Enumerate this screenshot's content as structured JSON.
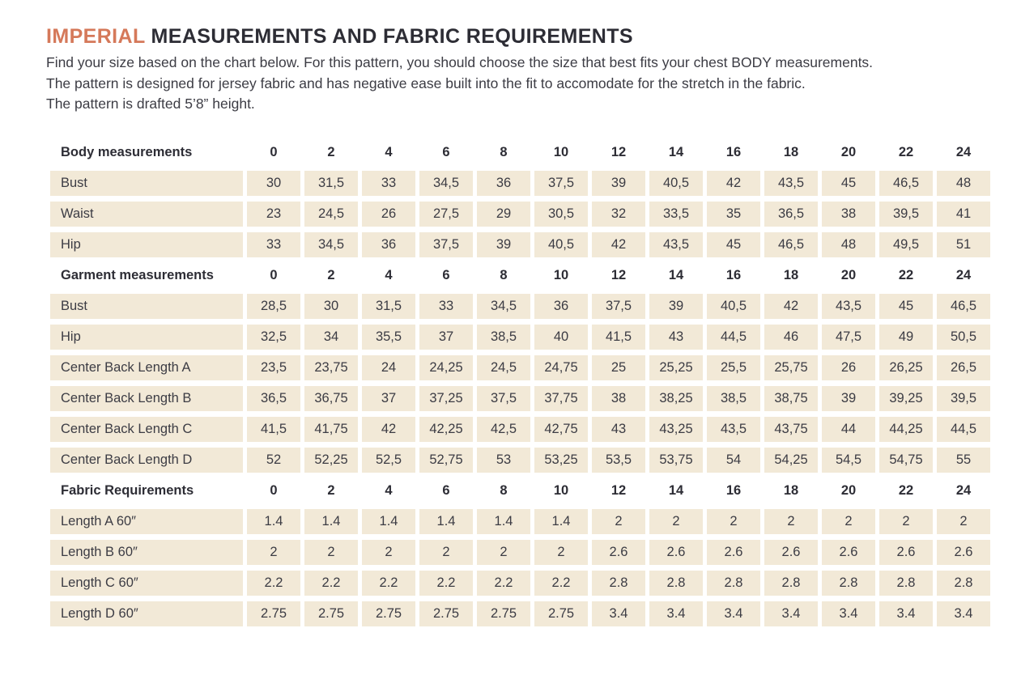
{
  "page": {
    "title_highlight": "IMPERIAL",
    "title_rest": " MEASUREMENTS AND FABRIC REQUIREMENTS",
    "intro_lines": [
      "Find your size based on the chart below. For this pattern, you should choose the size that best fits your chest BODY measurements.",
      "The pattern is designed for jersey fabric and has negative ease built into the fit to accomodate for the stretch in the fabric.",
      "The pattern is drafted 5’8” height."
    ]
  },
  "colors": {
    "accent_orange": "#d5795a",
    "cell_beige": "#f2e9d7",
    "heading_dark": "#2d2d35",
    "body_text": "#3c3c44"
  },
  "table": {
    "sizes": [
      "0",
      "2",
      "4",
      "6",
      "8",
      "10",
      "12",
      "14",
      "16",
      "18",
      "20",
      "22",
      "24"
    ],
    "sections": [
      {
        "header": "Body measurements",
        "rows": [
          {
            "label": "Bust",
            "values": [
              "30",
              "31,5",
              "33",
              "34,5",
              "36",
              "37,5",
              "39",
              "40,5",
              "42",
              "43,5",
              "45",
              "46,5",
              "48"
            ]
          },
          {
            "label": "Waist",
            "values": [
              "23",
              "24,5",
              "26",
              "27,5",
              "29",
              "30,5",
              "32",
              "33,5",
              "35",
              "36,5",
              "38",
              "39,5",
              "41"
            ]
          },
          {
            "label": "Hip",
            "values": [
              "33",
              "34,5",
              "36",
              "37,5",
              "39",
              "40,5",
              "42",
              "43,5",
              "45",
              "46,5",
              "48",
              "49,5",
              "51"
            ]
          }
        ]
      },
      {
        "header": "Garment measurements",
        "rows": [
          {
            "label": "Bust",
            "values": [
              "28,5",
              "30",
              "31,5",
              "33",
              "34,5",
              "36",
              "37,5",
              "39",
              "40,5",
              "42",
              "43,5",
              "45",
              "46,5"
            ]
          },
          {
            "label": "Hip",
            "values": [
              "32,5",
              "34",
              "35,5",
              "37",
              "38,5",
              "40",
              "41,5",
              "43",
              "44,5",
              "46",
              "47,5",
              "49",
              "50,5"
            ]
          },
          {
            "label": "Center Back Length A",
            "values": [
              "23,5",
              "23,75",
              "24",
              "24,25",
              "24,5",
              "24,75",
              "25",
              "25,25",
              "25,5",
              "25,75",
              "26",
              "26,25",
              "26,5"
            ]
          },
          {
            "label": "Center Back Length B",
            "values": [
              "36,5",
              "36,75",
              "37",
              "37,25",
              "37,5",
              "37,75",
              "38",
              "38,25",
              "38,5",
              "38,75",
              "39",
              "39,25",
              "39,5"
            ]
          },
          {
            "label": "Center Back Length C",
            "values": [
              "41,5",
              "41,75",
              "42",
              "42,25",
              "42,5",
              "42,75",
              "43",
              "43,25",
              "43,5",
              "43,75",
              "44",
              "44,25",
              "44,5"
            ]
          },
          {
            "label": "Center Back Length D",
            "values": [
              "52",
              "52,25",
              "52,5",
              "52,75",
              "53",
              "53,25",
              "53,5",
              "53,75",
              "54",
              "54,25",
              "54,5",
              "54,75",
              "55"
            ]
          }
        ]
      },
      {
        "header": "Fabric Requirements",
        "rows": [
          {
            "label": "Length A 60″",
            "values": [
              "1.4",
              "1.4",
              "1.4",
              "1.4",
              "1.4",
              "1.4",
              "2",
              "2",
              "2",
              "2",
              "2",
              "2",
              "2"
            ]
          },
          {
            "label": "Length B 60″",
            "values": [
              "2",
              "2",
              "2",
              "2",
              "2",
              "2",
              "2.6",
              "2.6",
              "2.6",
              "2.6",
              "2.6",
              "2.6",
              "2.6"
            ]
          },
          {
            "label": "Length C 60″",
            "values": [
              "2.2",
              "2.2",
              "2.2",
              "2.2",
              "2.2",
              "2.2",
              "2.8",
              "2.8",
              "2.8",
              "2.8",
              "2.8",
              "2.8",
              "2.8"
            ]
          },
          {
            "label": "Length D 60″",
            "values": [
              "2.75",
              "2.75",
              "2.75",
              "2.75",
              "2.75",
              "2.75",
              "3.4",
              "3.4",
              "3.4",
              "3.4",
              "3.4",
              "3.4",
              "3.4"
            ]
          }
        ]
      }
    ]
  }
}
